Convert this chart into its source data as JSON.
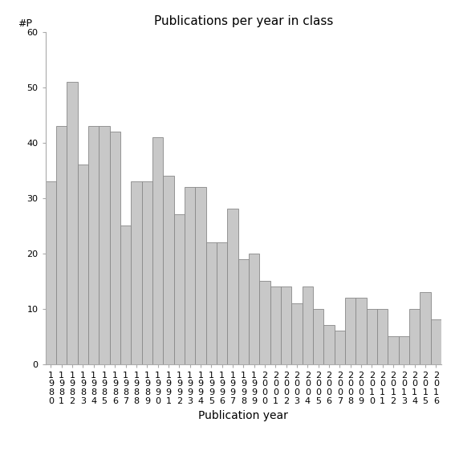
{
  "title": "Publications per year in class",
  "xlabel": "Publication year",
  "ylabel_text": "#P",
  "years": [
    1980,
    1981,
    1982,
    1983,
    1984,
    1985,
    1986,
    1987,
    1988,
    1989,
    1990,
    1991,
    1992,
    1993,
    1994,
    1995,
    1996,
    1997,
    1998,
    1999,
    2000,
    2001,
    2002,
    2003,
    2004,
    2005,
    2006,
    2007,
    2008,
    2009,
    2010,
    2011,
    2012,
    2013,
    2014,
    2015,
    2016
  ],
  "values": [
    33,
    43,
    51,
    36,
    43,
    43,
    42,
    25,
    33,
    33,
    41,
    34,
    27,
    32,
    32,
    22,
    22,
    28,
    19,
    20,
    15,
    14,
    14,
    11,
    14,
    10,
    7,
    6,
    12,
    12,
    10,
    10,
    5,
    5,
    10,
    13,
    8
  ],
  "bar_color": "#c8c8c8",
  "bar_edge_color": "#888888",
  "ylim": [
    0,
    60
  ],
  "yticks": [
    0,
    10,
    20,
    30,
    40,
    50,
    60
  ],
  "bg_color": "#ffffff",
  "title_fontsize": 11,
  "xlabel_fontsize": 10,
  "tick_fontsize": 8
}
